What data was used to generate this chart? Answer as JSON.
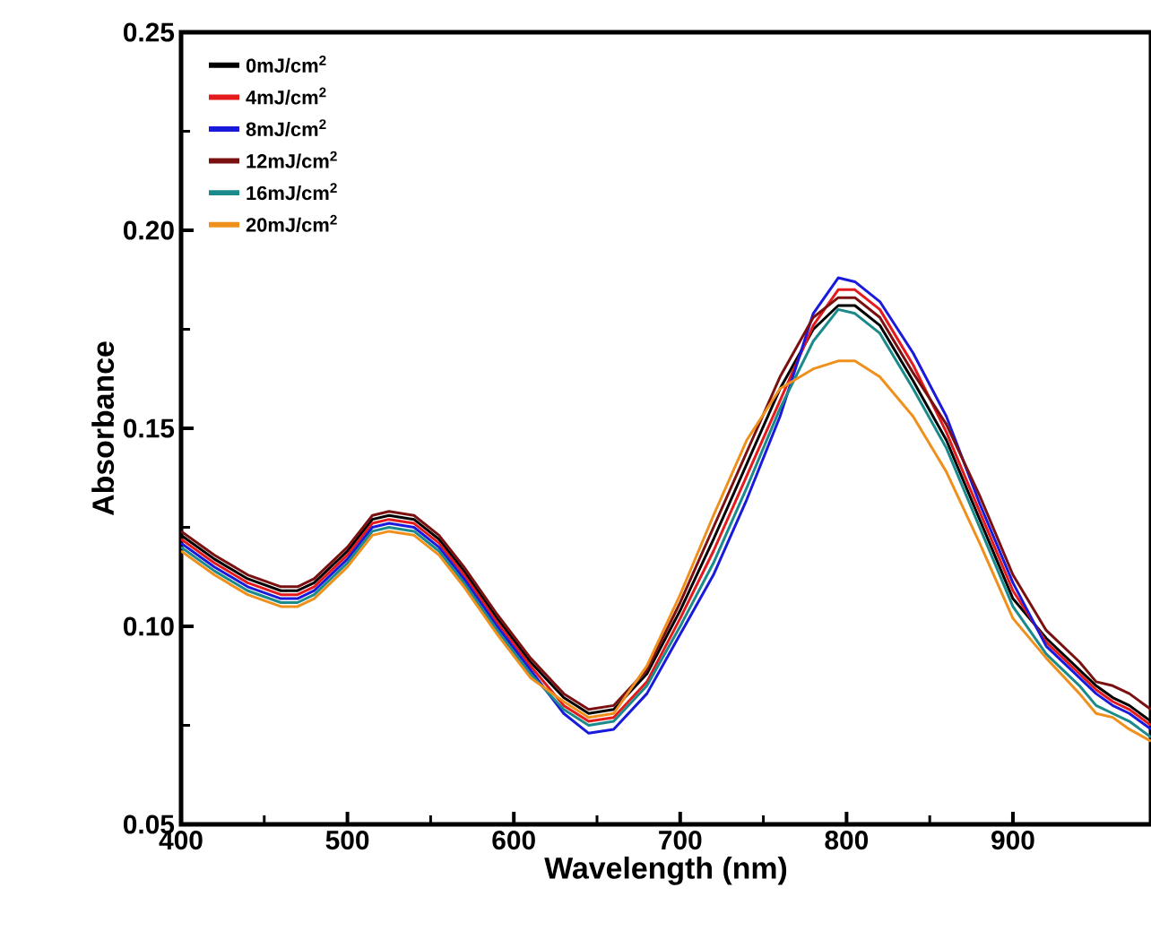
{
  "chart_data": {
    "type": "line",
    "xlabel": "Wavelength (nm)",
    "ylabel": "Absorbance",
    "x": [
      400,
      420,
      440,
      460,
      470,
      480,
      500,
      515,
      525,
      540,
      555,
      570,
      590,
      610,
      630,
      645,
      660,
      680,
      700,
      720,
      740,
      760,
      780,
      795,
      805,
      820,
      840,
      860,
      880,
      900,
      920,
      940,
      950,
      960,
      970,
      983
    ],
    "series": [
      {
        "name": "0mJ/cm$^{2}$",
        "color": "#000000",
        "values": [
          0.123,
          0.117,
          0.112,
          0.109,
          0.109,
          0.111,
          0.119,
          0.127,
          0.128,
          0.127,
          0.122,
          0.114,
          0.102,
          0.091,
          0.082,
          0.078,
          0.079,
          0.088,
          0.104,
          0.122,
          0.141,
          0.16,
          0.175,
          0.181,
          0.181,
          0.176,
          0.162,
          0.147,
          0.127,
          0.107,
          0.097,
          0.089,
          0.085,
          0.082,
          0.08,
          0.076
        ]
      },
      {
        "name": "4mJ/cm$^{2}$",
        "color": "#e41a1c",
        "values": [
          0.122,
          0.116,
          0.111,
          0.108,
          0.108,
          0.11,
          0.118,
          0.126,
          0.127,
          0.126,
          0.121,
          0.113,
          0.101,
          0.09,
          0.08,
          0.076,
          0.077,
          0.086,
          0.102,
          0.119,
          0.138,
          0.157,
          0.176,
          0.185,
          0.185,
          0.18,
          0.166,
          0.149,
          0.129,
          0.109,
          0.096,
          0.088,
          0.084,
          0.081,
          0.079,
          0.075
        ]
      },
      {
        "name": "8mJ/cm$^{2}$",
        "color": "#1a1adc",
        "values": [
          0.121,
          0.115,
          0.11,
          0.107,
          0.107,
          0.109,
          0.117,
          0.125,
          0.126,
          0.125,
          0.12,
          0.112,
          0.1,
          0.089,
          0.078,
          0.073,
          0.074,
          0.083,
          0.098,
          0.113,
          0.132,
          0.153,
          0.179,
          0.188,
          0.187,
          0.182,
          0.169,
          0.153,
          0.131,
          0.111,
          0.095,
          0.087,
          0.083,
          0.08,
          0.078,
          0.074
        ]
      },
      {
        "name": "12mJ/cm$^{2}$",
        "color": "#7a1010",
        "values": [
          0.124,
          0.118,
          0.113,
          0.11,
          0.11,
          0.112,
          0.12,
          0.128,
          0.129,
          0.128,
          0.123,
          0.115,
          0.103,
          0.092,
          0.083,
          0.079,
          0.08,
          0.089,
          0.106,
          0.125,
          0.144,
          0.163,
          0.178,
          0.183,
          0.183,
          0.178,
          0.164,
          0.151,
          0.133,
          0.113,
          0.099,
          0.091,
          0.086,
          0.085,
          0.083,
          0.079
        ]
      },
      {
        "name": "16mJ/cm$^{2}$",
        "color": "#1a8a8a",
        "values": [
          0.12,
          0.114,
          0.109,
          0.106,
          0.106,
          0.108,
          0.116,
          0.124,
          0.125,
          0.124,
          0.119,
          0.111,
          0.099,
          0.088,
          0.079,
          0.075,
          0.076,
          0.085,
          0.1,
          0.116,
          0.135,
          0.155,
          0.172,
          0.18,
          0.179,
          0.174,
          0.16,
          0.145,
          0.125,
          0.105,
          0.093,
          0.085,
          0.08,
          0.078,
          0.076,
          0.072
        ]
      },
      {
        "name": "20mJ/cm$^{2}$",
        "color": "#f0901c",
        "values": [
          0.119,
          0.113,
          0.108,
          0.105,
          0.105,
          0.107,
          0.115,
          0.123,
          0.124,
          0.123,
          0.118,
          0.11,
          0.098,
          0.087,
          0.081,
          0.077,
          0.078,
          0.09,
          0.108,
          0.128,
          0.147,
          0.16,
          0.165,
          0.167,
          0.167,
          0.163,
          0.153,
          0.139,
          0.121,
          0.102,
          0.092,
          0.083,
          0.078,
          0.077,
          0.074,
          0.071
        ]
      }
    ],
    "xlim": [
      400,
      983
    ],
    "ylim": [
      0.05,
      0.25
    ],
    "xticks": [
      400,
      500,
      600,
      700,
      800,
      900
    ],
    "yticks": [
      {
        "value": 0.05,
        "label": "0.05"
      },
      {
        "value": 0.1,
        "label": "0.10"
      },
      {
        "value": 0.15,
        "label": "0.15"
      },
      {
        "value": 0.2,
        "label": "0.20"
      },
      {
        "value": 0.25,
        "label": "0.25"
      }
    ],
    "legend": "top left",
    "grid": false,
    "marker": "none",
    "line_style": "solid"
  }
}
